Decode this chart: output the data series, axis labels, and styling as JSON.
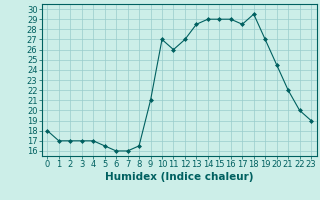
{
  "x": [
    0,
    1,
    2,
    3,
    4,
    5,
    6,
    7,
    8,
    9,
    10,
    11,
    12,
    13,
    14,
    15,
    16,
    17,
    18,
    19,
    20,
    21,
    22,
    23
  ],
  "y": [
    18,
    17,
    17,
    17,
    17,
    16.5,
    16,
    16,
    16.5,
    21,
    27,
    26,
    27,
    28.5,
    29,
    29,
    29,
    28.5,
    29.5,
    27,
    24.5,
    22,
    20,
    19
  ],
  "line_color": "#006060",
  "marker": "D",
  "marker_size": 2.0,
  "background_color": "#cceee8",
  "grid_color": "#99cccc",
  "xlabel": "Humidex (Indice chaleur)",
  "xlabel_fontsize": 7.5,
  "ylabel_ticks": [
    16,
    17,
    18,
    19,
    20,
    21,
    22,
    23,
    24,
    25,
    26,
    27,
    28,
    29,
    30
  ],
  "xlim": [
    -0.5,
    23.5
  ],
  "ylim": [
    15.5,
    30.5
  ],
  "tick_fontsize": 6.0
}
